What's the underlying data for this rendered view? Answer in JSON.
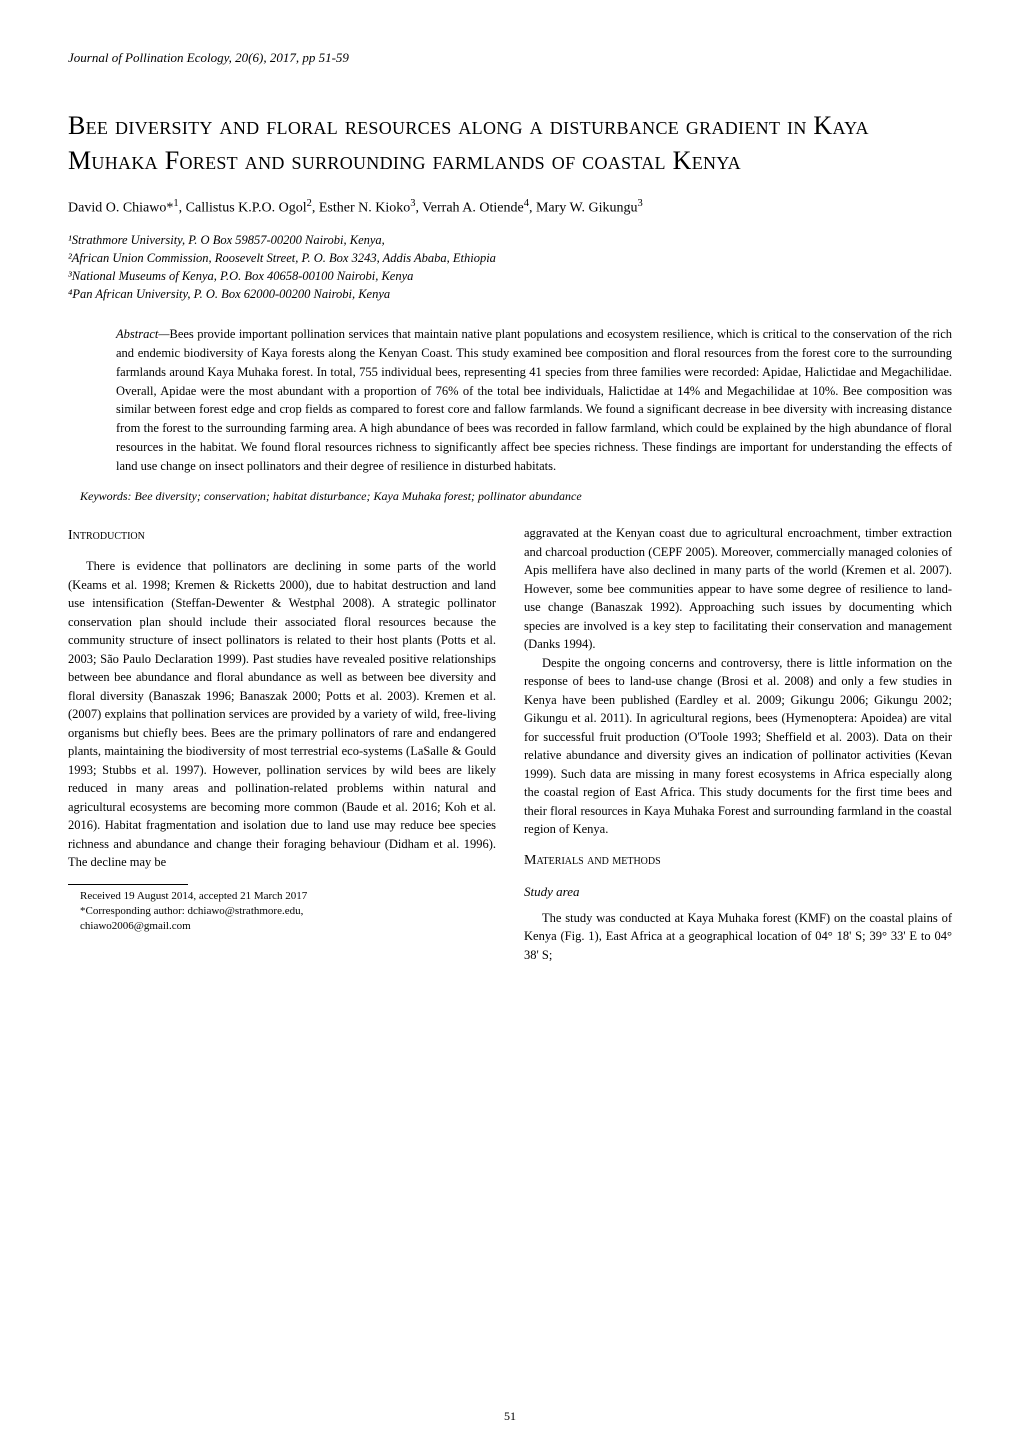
{
  "journal_header": "Journal of Pollination Ecology, 20(6), 2017, pp 51-59",
  "title": "Bee diversity and floral resources along a disturbance gradient in Kaya Muhaka Forest and surrounding farmlands of coastal Kenya",
  "authors_html": "David O. Chiawo*<sup>1</sup>, Callistus K.P.O. Ogol<sup>2</sup>, Esther N. Kioko<sup>3</sup>, Verrah A. Otiende<sup>4</sup>, Mary W. Gikungu<sup>3</sup>",
  "affiliations": [
    "¹Strathmore University, P. O Box 59857-00200 Nairobi, Kenya,",
    "²African Union Commission, Roosevelt Street, P. O. Box 3243, Addis Ababa, Ethiopia",
    "³National Museums of Kenya, P.O. Box 40658-00100 Nairobi, Kenya",
    "⁴Pan African University, P. O. Box 62000-00200 Nairobi, Kenya"
  ],
  "abstract": {
    "label": "Abstract—",
    "text": "Bees provide important pollination services that maintain native plant populations and ecosystem resilience, which is critical to the conservation of the rich and endemic biodiversity of Kaya forests along the Kenyan Coast. This study examined bee composition and floral resources from the forest core to the surrounding farmlands around Kaya Muhaka forest. In total, 755 individual bees, representing 41 species from three families were recorded: Apidae, Halictidae and Megachilidae. Overall, Apidae were the most abundant with a proportion of 76% of the total bee individuals, Halictidae at 14% and Megachilidae at 10%. Bee composition was similar between forest edge and crop fields as compared to forest core and fallow farmlands. We found a significant decrease in bee diversity with increasing distance from the forest to the surrounding farming area. A high abundance of bees was recorded in fallow farmland, which could be explained by the high abundance of floral resources in the habitat. We found floral resources richness to significantly affect bee species richness. These findings are important for understanding the effects of land use change on insect pollinators and their degree of resilience in disturbed habitats."
  },
  "keywords": "Keywords:   Bee diversity; conservation; habitat disturbance; Kaya Muhaka forest; pollinator abundance",
  "sections": {
    "introduction": {
      "heading": "Introduction",
      "p1": "There is evidence that pollinators are declining in some parts of the world (Keams et al. 1998; Kremen & Ricketts 2000), due to habitat destruction and land use intensification (Steffan-Dewenter & Westphal 2008). A strategic pollinator conservation plan should include their associated floral resources because the community structure of insect pollinators is related to their host plants (Potts et al. 2003; São Paulo Declaration 1999). Past studies have revealed positive relationships between bee abundance and floral abundance as well as between bee diversity and floral diversity (Banaszak 1996; Banaszak 2000; Potts et al. 2003). Kremen et al. (2007) explains that pollination services are provided by a variety of wild, free-living organisms but chiefly bees. Bees are the primary pollinators of rare and endangered plants, maintaining the biodiversity of most terrestrial eco-systems (LaSalle & Gould 1993; Stubbs et al. 1997). However, pollination services by wild bees are likely reduced in many areas and pollination-related problems within natural and agricultural ecosystems are becoming more common (Baude et al. 2016; Koh et al. 2016). Habitat fragmentation and isolation due to land use may reduce bee species richness and abundance and change their foraging behaviour (Didham et al. 1996). The decline may be",
      "p1_cont": "aggravated at the Kenyan coast due to agricultural encroachment, timber extraction and charcoal production (CEPF 2005). Moreover, commercially managed colonies of Apis mellifera have also declined in many parts of the world (Kremen et al. 2007). However, some bee communities appear to have some degree of resilience to land-use change (Banaszak 1992). Approaching such issues by documenting which species are involved is a key step to facilitating their conservation and management (Danks 1994).",
      "p2": "Despite the ongoing concerns and controversy, there is little information on the response of bees to land-use change (Brosi et al. 2008) and only a few studies in Kenya have been published (Eardley et al. 2009; Gikungu 2006; Gikungu 2002; Gikungu et al. 2011). In agricultural regions, bees (Hymenoptera: Apoidea) are vital for successful fruit production (O'Toole 1993; Sheffield et al. 2003). Data on their relative abundance and diversity gives an indication of pollinator activities (Kevan 1999). Such data are missing in many forest ecosystems in Africa especially along the coastal region of East Africa. This study documents for the first time bees and their floral resources in Kaya Muhaka Forest and surrounding farmland in the coastal region of Kenya."
    },
    "methods": {
      "heading": "Materials and methods",
      "sub_heading": "Study area",
      "p1": "The study was conducted at Kaya Muhaka forest (KMF) on the coastal plains of Kenya (Fig. 1), East Africa at a geographical location of 04° 18' S; 39° 33' E to 04° 38' S;"
    }
  },
  "footnote": {
    "line1": "Received 19 August 2014, accepted 21 March 2017",
    "line2": "*Corresponding author:  dchiawo@strathmore.edu,",
    "line3": "chiawo2006@gmail.com"
  },
  "page_number": "51"
}
